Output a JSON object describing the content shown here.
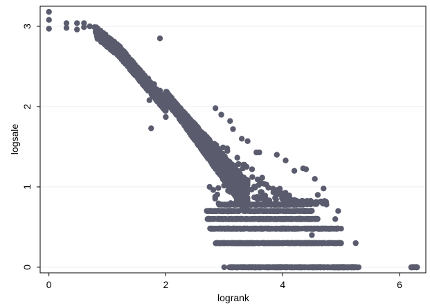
{
  "colors": {
    "background": "#ffffff",
    "plot_border": "#000000",
    "grid": "#e9eef3",
    "marker": "#5a5c6e",
    "axis": "#000000",
    "text": "#000000"
  },
  "chart_data": {
    "type": "scatter",
    "title": "",
    "xlabel": "logrank",
    "ylabel": "logsale",
    "xlim": [
      -0.15,
      6.45
    ],
    "ylim": [
      -0.07,
      3.25
    ],
    "xticks": [
      0,
      2,
      4,
      6
    ],
    "yticks": [
      0,
      1,
      2,
      3
    ],
    "xtick_labels": [
      "0",
      "2",
      "4",
      "6"
    ],
    "ytick_labels": [
      "0",
      "1",
      "2",
      "3"
    ],
    "grid": true,
    "legend": "none",
    "series": [
      {
        "marker": "circle",
        "description_points": [
          [
            0.0,
            3.18
          ],
          [
            0.0,
            3.08
          ],
          [
            0.0,
            2.97
          ],
          [
            0.3,
            3.04
          ],
          [
            0.3,
            2.98
          ],
          [
            0.48,
            3.04
          ],
          [
            0.48,
            2.96
          ],
          [
            0.6,
            3.04
          ],
          [
            0.6,
            2.99
          ],
          [
            0.7,
            3.0
          ],
          [
            0.78,
            2.99
          ],
          [
            0.85,
            2.94
          ],
          [
            0.9,
            2.88
          ],
          [
            1.0,
            2.85
          ],
          [
            1.1,
            2.8
          ],
          [
            1.2,
            2.75
          ],
          [
            1.25,
            2.67
          ],
          [
            1.3,
            2.62
          ],
          [
            1.4,
            2.55
          ],
          [
            1.5,
            2.48
          ],
          [
            1.6,
            2.42
          ],
          [
            1.7,
            2.35
          ],
          [
            1.8,
            2.28
          ],
          [
            1.9,
            2.2
          ],
          [
            2.0,
            2.1
          ],
          [
            2.1,
            2.0
          ],
          [
            2.2,
            1.92
          ],
          [
            2.3,
            1.82
          ],
          [
            2.4,
            1.73
          ],
          [
            2.5,
            1.62
          ],
          [
            2.6,
            1.5
          ],
          [
            2.7,
            1.4
          ],
          [
            2.8,
            1.3
          ],
          [
            2.9,
            1.2
          ],
          [
            3.0,
            1.08
          ],
          [
            3.1,
            0.98
          ],
          [
            3.2,
            0.9
          ],
          [
            3.35,
            0.8
          ],
          [
            1.9,
            2.85
          ],
          [
            1.75,
            1.73
          ],
          [
            2.0,
            1.87
          ],
          [
            1.72,
            2.08
          ],
          [
            2.85,
            1.98
          ],
          [
            2.95,
            1.9
          ],
          [
            3.1,
            1.82
          ],
          [
            3.15,
            1.72
          ],
          [
            3.3,
            1.6
          ],
          [
            3.4,
            1.57
          ],
          [
            3.55,
            1.43
          ],
          [
            3.6,
            1.43
          ],
          [
            3.9,
            1.4
          ],
          [
            4.05,
            1.33
          ],
          [
            4.2,
            1.2
          ],
          [
            4.35,
            1.23
          ],
          [
            4.4,
            1.22
          ],
          [
            4.55,
            1.1
          ],
          [
            4.7,
            0.98
          ],
          [
            4.6,
            0.9
          ],
          [
            4.75,
            0.78
          ],
          [
            4.95,
            0.7
          ],
          [
            5.0,
            0.48
          ],
          [
            5.25,
            0.3
          ],
          [
            3.0,
            0.7
          ],
          [
            3.5,
            0.6
          ],
          [
            4.0,
            0.48
          ],
          [
            4.5,
            0.4
          ],
          [
            5.0,
            0.3
          ],
          [
            4.9,
            0.6
          ],
          [
            2.75,
            1.0
          ],
          [
            3.05,
            1.48
          ],
          [
            3.0,
            0.0
          ],
          [
            3.5,
            0.0
          ],
          [
            4.0,
            0.0
          ],
          [
            4.5,
            0.0
          ],
          [
            5.0,
            0.0
          ],
          [
            5.3,
            0.0
          ],
          [
            6.2,
            0.0
          ],
          [
            6.25,
            0.0
          ],
          [
            6.3,
            0.0
          ]
        ],
        "bands": [
          {
            "y": 0.0,
            "x_range": [
              3.08,
              5.3
            ]
          },
          {
            "y": 0.0,
            "x_range": [
              6.2,
              6.3
            ]
          },
          {
            "y": 0.3,
            "x_range": [
              2.85,
              5.0
            ]
          },
          {
            "y": 0.48,
            "x_range": [
              2.75,
              4.95
            ]
          },
          {
            "y": 0.6,
            "x_range": [
              2.7,
              4.6
            ]
          },
          {
            "y": 0.7,
            "x_range": [
              2.7,
              4.5
            ]
          },
          {
            "y": 0.78,
            "x_range": [
              2.9,
              4.35
            ]
          }
        ]
      }
    ]
  }
}
